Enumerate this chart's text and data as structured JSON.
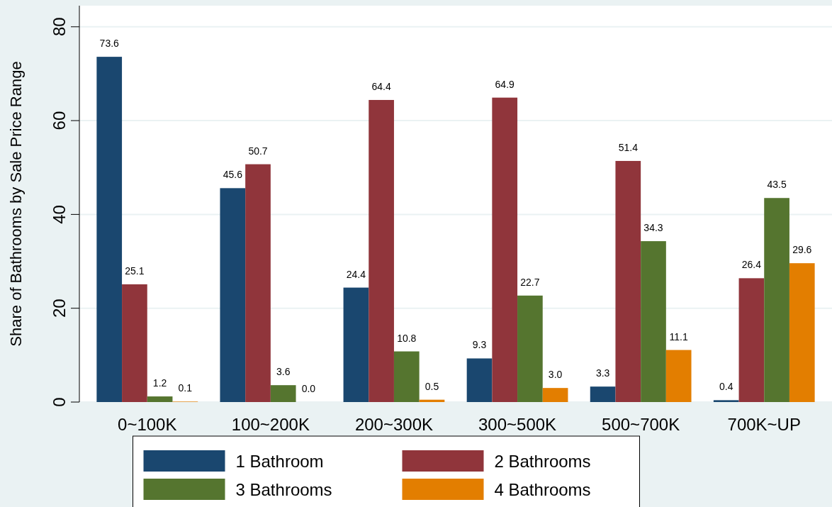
{
  "chart_data": {
    "type": "bar",
    "ylabel": "Share of Bathrooms by Sale Price Range",
    "categories": [
      "0~100K",
      "100~200K",
      "200~300K",
      "300~500K",
      "500~700K",
      "700K~UP"
    ],
    "series": [
      {
        "name": "1 Bathroom",
        "color": "#1a476f",
        "values": [
          73.6,
          45.6,
          24.4,
          9.3,
          3.3,
          0.4
        ]
      },
      {
        "name": "2 Bathrooms",
        "color": "#90353b",
        "values": [
          25.1,
          50.7,
          64.4,
          64.9,
          51.4,
          26.4
        ]
      },
      {
        "name": "3 Bathrooms",
        "color": "#55752f",
        "values": [
          1.2,
          3.6,
          10.8,
          22.7,
          34.3,
          43.5
        ]
      },
      {
        "name": "4 Bathrooms",
        "color": "#e37e00",
        "values": [
          0.1,
          0.0,
          0.5,
          3.0,
          11.1,
          29.6
        ]
      }
    ],
    "value_labels": [
      [
        "73.6",
        "45.6",
        "24.4",
        "9.3",
        "3.3",
        "0.4"
      ],
      [
        "25.1",
        "50.7",
        "64.4",
        "64.9",
        "51.4",
        "26.4"
      ],
      [
        "1.2",
        "3.6",
        "10.8",
        "22.7",
        "34.3",
        "43.5"
      ],
      [
        "0.1",
        "0.0",
        "0.5",
        "3.0",
        "11.1",
        "29.6"
      ]
    ],
    "ylim": [
      0,
      84.5
    ],
    "yticks": [
      0,
      20,
      40,
      60,
      80
    ],
    "grid": "y",
    "legend": "bottom"
  }
}
